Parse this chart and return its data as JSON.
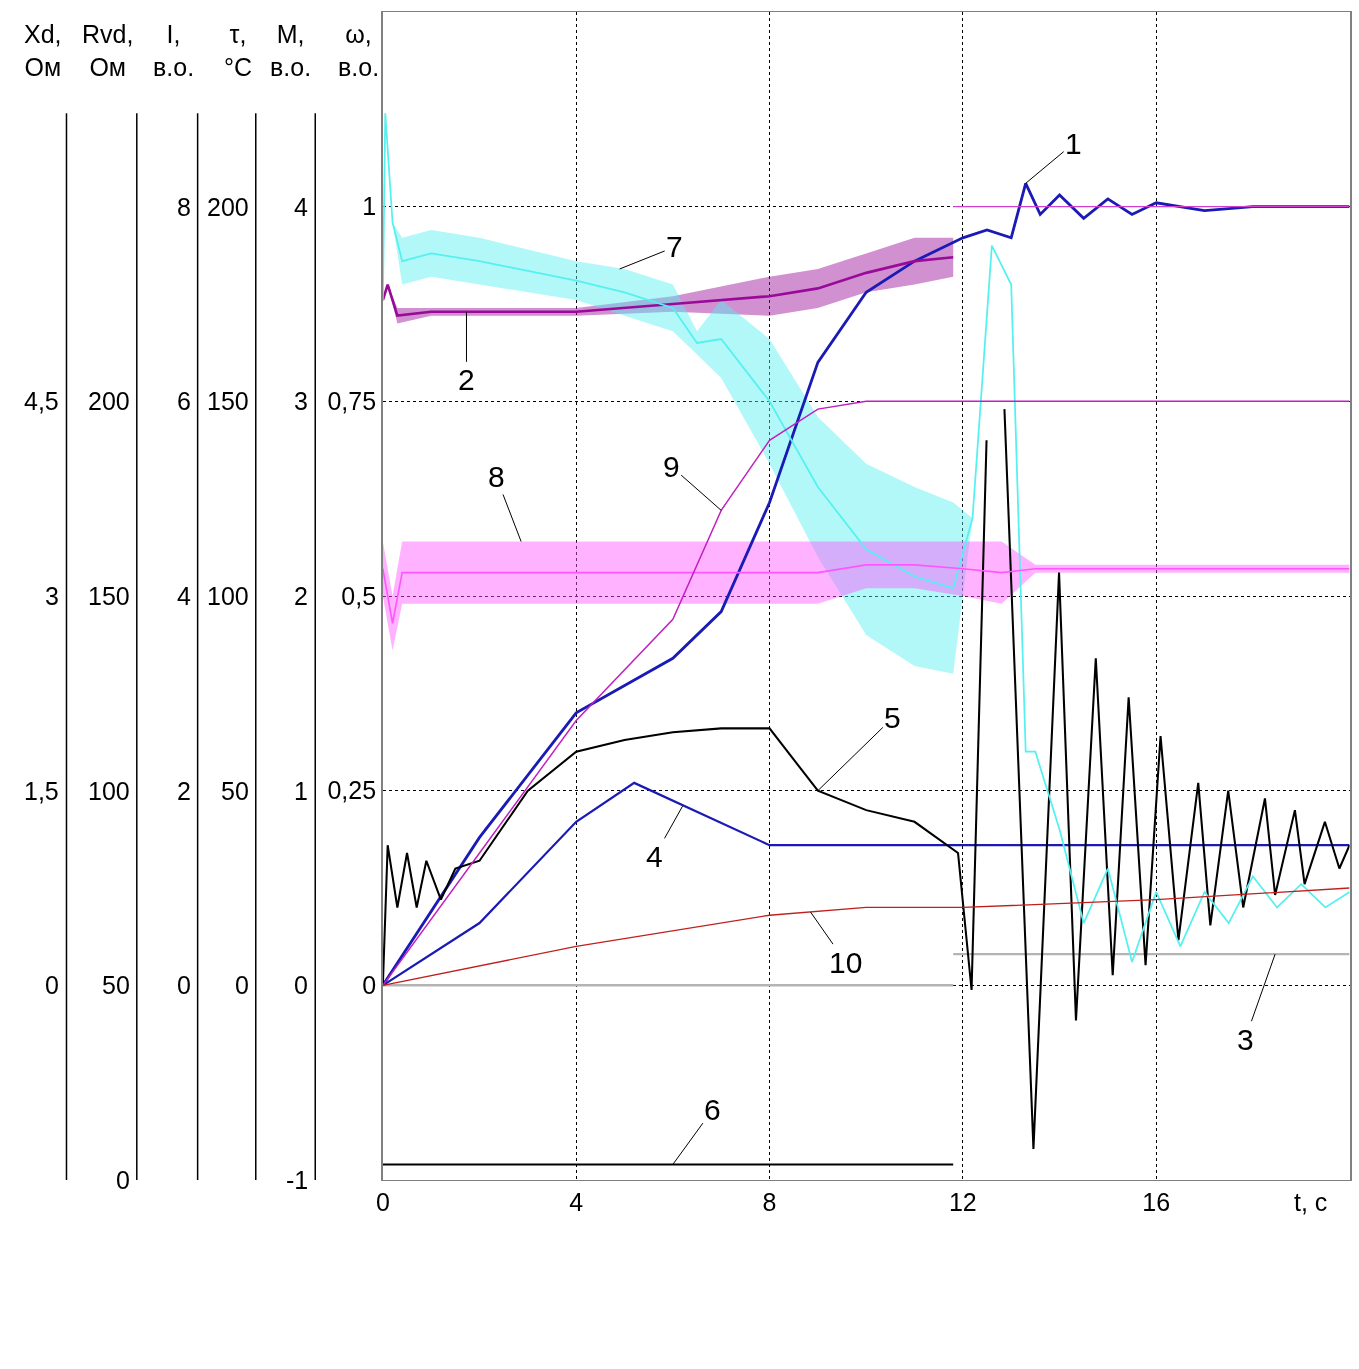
{
  "chart_data": {
    "type": "line",
    "xlabel": "t, c",
    "ylabel": "ω,\nв.о.",
    "xlim": [
      0,
      20
    ],
    "xticks": [
      0,
      4,
      8,
      12,
      16
    ],
    "ylim": [
      -0.25,
      1.25
    ],
    "yticks": [
      0,
      {
        "value": 0.25,
        "label": "0,25"
      },
      {
        "value": 0.5,
        "label": "0,5"
      },
      {
        "value": 0.75,
        "label": "0,75"
      },
      1
    ],
    "grid": true,
    "series": [
      {
        "color": "#1a1ab4",
        "x": [
          0,
          2,
          4,
          6,
          7,
          8,
          9,
          10,
          11,
          12,
          12.5,
          13,
          13.3,
          13.6,
          14,
          14.5,
          15,
          15.5,
          16,
          17,
          18,
          20
        ],
        "values": [
          0,
          0.19,
          0.35,
          0.42,
          0.48,
          0.62,
          0.8,
          0.89,
          0.93,
          0.96,
          0.97,
          0.96,
          1.03,
          0.99,
          1.015,
          0.985,
          1.01,
          0.99,
          1.005,
          0.995,
          1.0,
          1.0
        ]
      },
      {
        "color": "#9a0a9a",
        "x": [
          0,
          0.1,
          0.3,
          1,
          2,
          4,
          6,
          8,
          9,
          10,
          11,
          11.8
        ],
        "values": [
          0.88,
          0.9,
          0.86,
          0.865,
          0.865,
          0.865,
          0.875,
          0.885,
          0.895,
          0.915,
          0.93,
          0.935
        ],
        "lower": [
          0.88,
          0.9,
          0.85,
          0.86,
          0.86,
          0.86,
          0.865,
          0.86,
          0.87,
          0.89,
          0.9,
          0.91
        ],
        "upper": [
          0.88,
          0.9,
          0.87,
          0.87,
          0.87,
          0.87,
          0.885,
          0.91,
          0.92,
          0.94,
          0.96,
          0.96
        ]
      },
      {
        "color": "#b4b4b4",
        "x": [
          0,
          11.8
        ],
        "values": [
          0,
          0
        ]
      },
      {
        "color": "#b4b4b4",
        "x": [
          11.8,
          20
        ],
        "values": [
          0.04,
          0.04
        ]
      },
      {
        "color": "#1a1ab4",
        "x": [
          0,
          2,
          4,
          5.2,
          8,
          20
        ],
        "values": [
          0,
          0.08,
          0.21,
          0.26,
          0.18,
          0.18
        ]
      },
      {
        "color": "#000000",
        "x": [
          0,
          0.1,
          0.3,
          0.5,
          0.7,
          0.9,
          1.2,
          1.5,
          2,
          3,
          4,
          5,
          6,
          7,
          8,
          9,
          10,
          11,
          11.9,
          12.18,
          12.49,
          12.66,
          12.86,
          13.46,
          13.99,
          14.34,
          14.75,
          15.1,
          15.43,
          15.78,
          16.09,
          16.46,
          16.87,
          17.12,
          17.49,
          17.8,
          18.25,
          18.46,
          18.87,
          19.07,
          19.49,
          19.79,
          20
        ],
        "values": [
          0,
          0.18,
          0.1,
          0.17,
          0.1,
          0.16,
          0.11,
          0.15,
          0.16,
          0.25,
          0.3,
          0.315,
          0.325,
          0.33,
          0.33,
          0.25,
          0.225,
          0.21,
          0.17,
          -0.006,
          0.7,
          null,
          0.74,
          -0.21,
          0.53,
          -0.045,
          0.42,
          0.013,
          0.37,
          0.026,
          0.32,
          0.058,
          0.26,
          0.077,
          0.25,
          0.1,
          0.24,
          0.116,
          0.225,
          0.13,
          0.21,
          0.15,
          0.18
        ]
      },
      {
        "color": "#000000",
        "x": [
          0,
          11.8
        ],
        "values": [
          -0.23,
          -0.23
        ]
      },
      {
        "color": "#55f0f0",
        "x": [
          0,
          0.05,
          0.2,
          0.4,
          1,
          2,
          4,
          5,
          6,
          6.5,
          7,
          8,
          9,
          10,
          11,
          11.8,
          12.2,
          12.6,
          13,
          13.3,
          13.5,
          14,
          14.5,
          15,
          15.5,
          16,
          16.5,
          17,
          17.5,
          18,
          18.5,
          19,
          19.5,
          20
        ],
        "values": [
          0.88,
          1.12,
          0.98,
          0.93,
          0.94,
          0.93,
          0.905,
          0.89,
          0.87,
          0.825,
          0.83,
          0.75,
          0.64,
          0.56,
          0.525,
          0.51,
          0.6,
          0.95,
          0.9,
          0.3,
          0.3,
          0.2,
          0.08,
          0.15,
          0.03,
          0.12,
          0.05,
          0.12,
          0.08,
          0.14,
          0.1,
          0.13,
          0.1,
          0.12
        ],
        "lower": [
          0.88,
          1.12,
          0.98,
          0.9,
          0.91,
          0.9,
          0.88,
          0.86,
          0.84,
          0.81,
          0.78,
          0.67,
          0.55,
          0.45,
          0.41,
          0.4,
          0.6,
          0.95,
          0.9,
          0.3,
          0.3,
          0.2,
          0.08,
          0.15,
          0.03,
          0.12,
          0.05,
          0.12,
          0.08,
          0.14,
          0.1,
          0.13,
          0.1,
          0.12
        ],
        "upper": [
          0.88,
          1.12,
          0.98,
          0.96,
          0.97,
          0.96,
          0.93,
          0.92,
          0.9,
          0.84,
          0.88,
          0.83,
          0.73,
          0.67,
          0.64,
          0.62,
          0.6,
          0.95,
          0.9,
          0.3,
          0.3,
          0.2,
          0.08,
          0.15,
          0.03,
          0.12,
          0.05,
          0.12,
          0.08,
          0.14,
          0.1,
          0.13,
          0.1,
          0.12
        ]
      },
      {
        "color": "#ff55ff",
        "x": [
          0,
          0.2,
          0.4,
          2,
          4,
          6,
          8,
          9,
          10,
          11,
          12,
          12.8,
          13.5,
          20
        ],
        "values": [
          0.535,
          0.465,
          0.53,
          0.53,
          0.53,
          0.53,
          0.53,
          0.53,
          0.54,
          0.54,
          0.535,
          0.53,
          0.535,
          0.535
        ],
        "lower": [
          0.5,
          0.43,
          0.49,
          0.49,
          0.49,
          0.49,
          0.49,
          0.49,
          0.51,
          0.51,
          0.5,
          0.49,
          0.53,
          0.53
        ],
        "upper": [
          0.57,
          0.5,
          0.57,
          0.57,
          0.57,
          0.57,
          0.57,
          0.57,
          0.57,
          0.57,
          0.57,
          0.57,
          0.54,
          0.54
        ]
      },
      {
        "color": "#c21ec2",
        "x": [
          0,
          2,
          4,
          6,
          7,
          8,
          9,
          10,
          20
        ],
        "values": [
          0,
          0.17,
          0.34,
          0.47,
          0.61,
          0.7,
          0.74,
          0.75,
          0.75
        ]
      },
      {
        "color": "#c0201c",
        "x": [
          0,
          4,
          8,
          10,
          12,
          16,
          20
        ],
        "values": [
          0,
          0.05,
          0.09,
          0.1,
          0.1,
          0.11,
          0.125
        ]
      },
      {
        "color": "#d040d0",
        "x": [
          11.8,
          20
        ],
        "values": [
          1,
          1
        ]
      }
    ],
    "annotations": [
      {
        "text": "1",
        "x": 13.3,
        "y": 1.03
      },
      {
        "text": "2",
        "x": 1.73,
        "y": 0.865
      },
      {
        "text": "3",
        "x": 18.46,
        "y": 0.04
      },
      {
        "text": "4",
        "x": 6.2,
        "y": 0.23
      },
      {
        "text": "5",
        "x": 9,
        "y": 0.25
      },
      {
        "text": "6",
        "x": 6.0,
        "y": -0.23
      },
      {
        "text": "7",
        "x": 4.9,
        "y": 0.92
      },
      {
        "text": "8",
        "x": 2.86,
        "y": 0.57
      },
      {
        "text": "9",
        "x": 7,
        "y": 0.61
      },
      {
        "text": "10",
        "x": 8.85,
        "y": 0.094
      },
      "Xd,\nОм",
      "0",
      "1,5",
      "3",
      "4,5",
      "Rvd,\nОм",
      "0",
      "50",
      "100",
      "150",
      "200",
      "I,\nв.о.",
      "0",
      "2",
      "4",
      "6",
      "8",
      "τ,\n°C",
      "0",
      "50",
      "100",
      "150",
      "200",
      "M,\nв.о.",
      "-1",
      "0",
      "1",
      "2",
      "3",
      "4"
    ]
  }
}
